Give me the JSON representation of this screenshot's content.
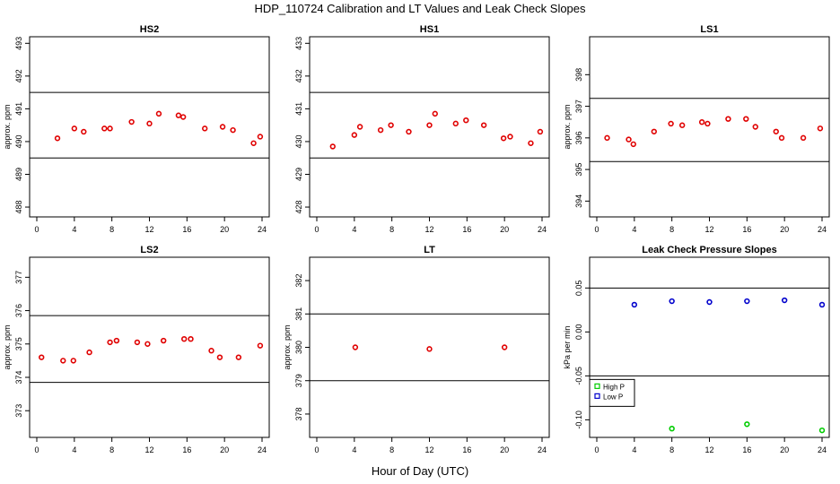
{
  "page": {
    "title": "HDP_110724  Calibration and LT Values and Leak Check Slopes",
    "xlabel": "Hour of Day (UTC)"
  },
  "chart_data": [
    {
      "type": "scatter",
      "title": "HS2",
      "ylabel": "approx. ppm",
      "xlim": [
        0,
        24
      ],
      "ylim": [
        487.7,
        493.2
      ],
      "xticks": [
        0,
        4,
        8,
        12,
        16,
        20,
        24
      ],
      "yticks": [
        488,
        489,
        490,
        491,
        492,
        493
      ],
      "hlines": [
        491.5,
        489.5
      ],
      "color": "#e00000",
      "series": [
        {
          "name": "HS2",
          "x": [
            2.2,
            4.0,
            5.0,
            7.2,
            7.8,
            10.1,
            12.0,
            13.0,
            15.1,
            15.6,
            17.9,
            19.8,
            20.9,
            23.1,
            23.8
          ],
          "y": [
            490.1,
            490.4,
            490.3,
            490.4,
            490.4,
            490.6,
            490.55,
            490.85,
            490.8,
            490.75,
            490.4,
            490.45,
            490.35,
            489.95,
            490.15
          ]
        }
      ]
    },
    {
      "type": "scatter",
      "title": "HS1",
      "ylabel": "",
      "xlim": [
        0,
        24
      ],
      "ylim": [
        427.7,
        433.2
      ],
      "xticks": [
        0,
        4,
        8,
        12,
        16,
        20,
        24
      ],
      "yticks": [
        428,
        429,
        430,
        431,
        432,
        433
      ],
      "hlines": [
        431.5,
        429.5
      ],
      "color": "#e00000",
      "series": [
        {
          "name": "HS1",
          "x": [
            1.7,
            4.0,
            4.6,
            6.8,
            7.9,
            9.8,
            12.0,
            12.6,
            14.8,
            15.9,
            17.8,
            19.9,
            20.6,
            22.8,
            23.8
          ],
          "y": [
            429.85,
            430.2,
            430.45,
            430.35,
            430.5,
            430.3,
            430.5,
            430.85,
            430.55,
            430.65,
            430.5,
            430.1,
            430.15,
            429.95,
            430.3
          ]
        }
      ]
    },
    {
      "type": "scatter",
      "title": "LS1",
      "ylabel": "approx. ppm",
      "xlim": [
        0,
        24
      ],
      "ylim": [
        393.5,
        399.2
      ],
      "xticks": [
        0,
        4,
        8,
        12,
        16,
        20,
        24
      ],
      "yticks": [
        394,
        395,
        396,
        397,
        398
      ],
      "hlines": [
        397.25,
        395.25
      ],
      "color": "#e00000",
      "series": [
        {
          "name": "LS1",
          "x": [
            1.1,
            3.4,
            3.9,
            6.1,
            7.9,
            9.1,
            11.2,
            11.8,
            14.0,
            15.9,
            16.9,
            19.1,
            19.7,
            22.0,
            23.8
          ],
          "y": [
            396.0,
            395.95,
            395.8,
            396.2,
            396.45,
            396.4,
            396.5,
            396.45,
            396.6,
            396.6,
            396.35,
            396.2,
            396.0,
            396.0,
            396.3
          ]
        }
      ]
    },
    {
      "type": "scatter",
      "title": "LS2",
      "ylabel": "approx. ppm",
      "xlim": [
        0,
        24
      ],
      "ylim": [
        372.2,
        377.6
      ],
      "xticks": [
        0,
        4,
        8,
        12,
        16,
        20,
        24
      ],
      "yticks": [
        373,
        374,
        375,
        376,
        377
      ],
      "hlines": [
        375.85,
        373.85
      ],
      "color": "#e00000",
      "series": [
        {
          "name": "LS2",
          "x": [
            0.5,
            2.8,
            3.9,
            5.6,
            7.8,
            8.5,
            10.7,
            11.8,
            13.5,
            15.7,
            16.4,
            18.6,
            19.5,
            21.5,
            23.8
          ],
          "y": [
            374.6,
            374.5,
            374.5,
            374.75,
            375.05,
            375.1,
            375.05,
            375.0,
            375.1,
            375.15,
            375.15,
            374.8,
            374.6,
            374.6,
            374.95
          ]
        }
      ]
    },
    {
      "type": "scatter",
      "title": "LT",
      "ylabel": "approx. ppm",
      "xlim": [
        0,
        24
      ],
      "ylim": [
        377.3,
        382.7
      ],
      "xticks": [
        0,
        4,
        8,
        12,
        16,
        20,
        24
      ],
      "yticks": [
        378,
        379,
        380,
        381,
        382
      ],
      "hlines": [
        381.0,
        379.0
      ],
      "color": "#e00000",
      "series": [
        {
          "name": "LT",
          "x": [
            4.1,
            12.0,
            20.0
          ],
          "y": [
            380.0,
            379.95,
            380.0
          ]
        }
      ]
    },
    {
      "type": "scatter",
      "title": "Leak Check Pressure Slopes",
      "ylabel": "kPa per min",
      "xlim": [
        0,
        24
      ],
      "ylim": [
        -0.12,
        0.085
      ],
      "xticks": [
        0,
        4,
        8,
        12,
        16,
        20,
        24
      ],
      "yticks": [
        -0.1,
        -0.05,
        0.0,
        0.05
      ],
      "ytick_labels": [
        "-0.10",
        "-0.05",
        "0.00",
        "0.05"
      ],
      "hlines": [
        0.05,
        -0.05
      ],
      "legend_position": "left",
      "series": [
        {
          "name": "High P",
          "color": "#00cc00",
          "x": [
            8.0,
            16.0,
            24.0
          ],
          "y": [
            -0.11,
            -0.105,
            -0.112
          ]
        },
        {
          "name": "Low P",
          "color": "#0000cc",
          "x": [
            4.0,
            8.0,
            12.0,
            16.0,
            20.0,
            24.0
          ],
          "y": [
            0.031,
            0.035,
            0.034,
            0.035,
            0.036,
            0.031
          ]
        }
      ]
    }
  ]
}
